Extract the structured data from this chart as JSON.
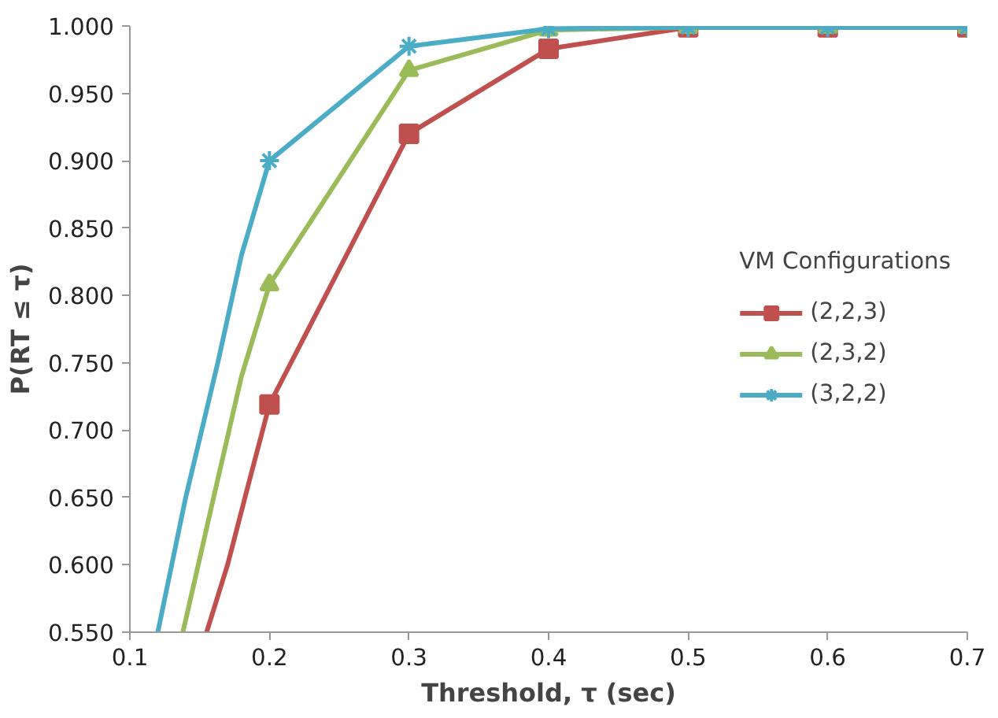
{
  "chart_data": {
    "type": "line",
    "xlabel": "Threshold, τ (sec)",
    "ylabel": "P(RT ≤ τ)",
    "legend_title": "VM Configurations",
    "legend": "right",
    "grid": false,
    "marker": "none",
    "xlim": [
      0.1,
      0.7
    ],
    "xticks": [
      0.1,
      0.2,
      0.3,
      0.4,
      0.5,
      0.6,
      0.7
    ],
    "ylim": [
      0.55,
      1.0
    ],
    "yticks": [
      {
        "value": 0.55,
        "label": "0.550"
      },
      {
        "value": 0.6,
        "label": "0.600"
      },
      {
        "value": 0.65,
        "label": "0.650"
      },
      {
        "value": 0.7,
        "label": "0.700"
      },
      {
        "value": 0.75,
        "label": "0.750"
      },
      {
        "value": 0.8,
        "label": "0.800"
      },
      {
        "value": 0.85,
        "label": "0.850"
      },
      {
        "value": 0.9,
        "label": "0.900"
      },
      {
        "value": 0.95,
        "label": "0.950"
      },
      {
        "value": 1.0,
        "label": "1.000"
      }
    ],
    "series": [
      {
        "name": "(2,2,3)",
        "color": "#c0504d",
        "marker": "square",
        "x": [
          0.2,
          0.3,
          0.4,
          0.5,
          0.6,
          0.7
        ],
        "values": [
          0.719,
          0.92,
          0.983,
          0.999,
          0.999,
          0.999
        ]
      },
      {
        "name": "(2,3,2)",
        "color": "#9bbb59",
        "marker": "triangle",
        "x": [
          0.2,
          0.3,
          0.4,
          0.5,
          0.6,
          0.7
        ],
        "values": [
          0.808,
          0.967,
          0.997,
          0.999,
          0.999,
          0.999
        ]
      },
      {
        "name": "(3,2,2)",
        "color": "#4bacc6",
        "marker": "cross",
        "x": [
          0.2,
          0.3,
          0.4,
          0.5,
          0.6,
          0.7
        ],
        "values": [
          0.9,
          0.985,
          0.998,
          0.999,
          0.999,
          0.999
        ]
      },
      {
        "color": "#c0504d",
        "x": [
          0.155,
          0.17,
          0.185,
          0.2
        ],
        "values": [
          0.55,
          0.6,
          0.66,
          0.719
        ]
      },
      {
        "color": "#9bbb59",
        "x": [
          0.138,
          0.16,
          0.18,
          0.2
        ],
        "values": [
          0.55,
          0.65,
          0.74,
          0.808
        ]
      },
      {
        "color": "#4bacc6",
        "x": [
          0.12,
          0.14,
          0.163,
          0.18,
          0.2
        ],
        "values": [
          0.55,
          0.65,
          0.75,
          0.83,
          0.9
        ]
      }
    ]
  }
}
